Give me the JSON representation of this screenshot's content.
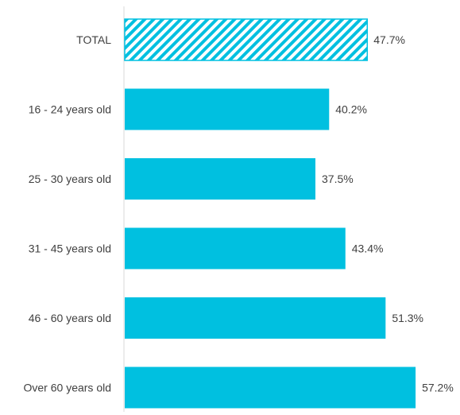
{
  "chart_data": {
    "type": "bar",
    "orientation": "horizontal",
    "categories": [
      "TOTAL",
      "16 - 24 years old",
      "25 - 30 years old",
      "31 - 45 years old",
      "46 - 60 years old",
      "Over 60 years old"
    ],
    "values": [
      47.7,
      40.2,
      37.5,
      43.4,
      51.3,
      57.2
    ],
    "value_labels": [
      "47.7%",
      "40.2%",
      "37.5%",
      "43.4%",
      "51.3%",
      "57.2%"
    ],
    "title": "",
    "xlabel": "",
    "ylabel": "",
    "xlim": [
      0,
      64
    ],
    "grid": false,
    "legend": "none",
    "highlight": {
      "category": "TOTAL",
      "pattern": "diagonal-stripes"
    },
    "colors": {
      "bar": "#00c0e0",
      "stripe": "#00c0e0",
      "axis": "#d9d9d9",
      "text": "#404040"
    }
  }
}
